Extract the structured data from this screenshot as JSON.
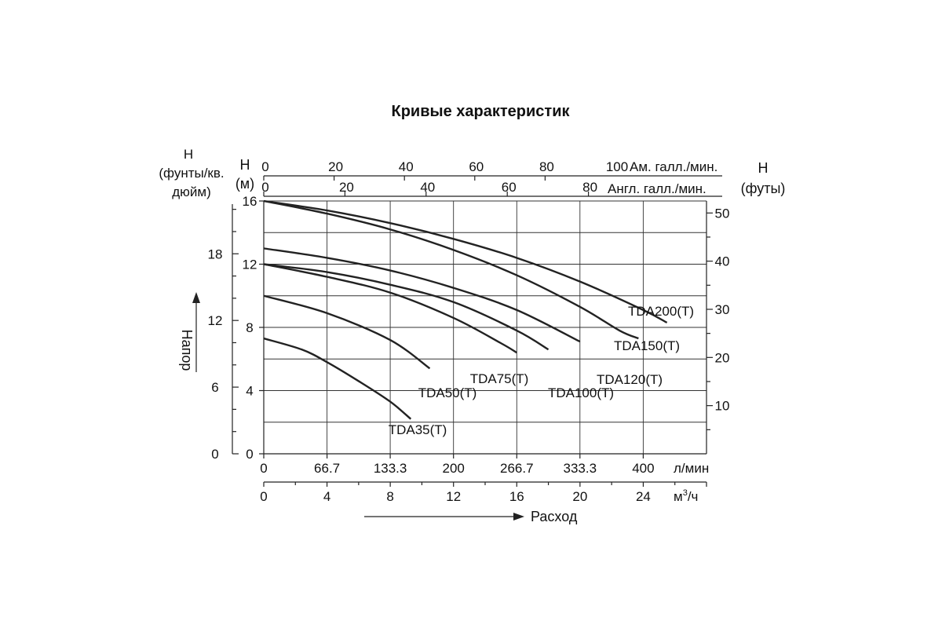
{
  "chart_data": {
    "type": "line",
    "title": "Кривые характеристик",
    "left_outer_axis": {
      "label_lines": [
        "Н",
        "(фунты/кв.",
        "дюйм)"
      ],
      "ticks": [
        0,
        6,
        12,
        18
      ]
    },
    "left_axis": {
      "label_lines": [
        "Н",
        "(м)"
      ],
      "ticks": [
        0,
        4,
        8,
        12,
        16
      ],
      "range": [
        0,
        16
      ],
      "side_label": "Напор"
    },
    "right_axis": {
      "label_lines": [
        "Н",
        "(футы)"
      ],
      "ticks": [
        10,
        20,
        30,
        40,
        50
      ]
    },
    "top_axis_1": {
      "ticks": [
        "0",
        "20",
        "40",
        "60",
        "80",
        "100"
      ],
      "label": "Ам. галл./мин."
    },
    "top_axis_2": {
      "ticks": [
        "0",
        "20",
        "40",
        "60",
        "80"
      ],
      "label": "Англ. галл./мин."
    },
    "bottom_axis_1": {
      "ticks": [
        "0",
        "66.7",
        "133.3",
        "200",
        "266.7",
        "333.3",
        "400"
      ],
      "label": "л/мин",
      "range": [
        0,
        466.7
      ]
    },
    "bottom_axis_2": {
      "ticks": [
        "0",
        "4",
        "8",
        "12",
        "16",
        "20",
        "24"
      ],
      "label_base": "м",
      "label_sup": "3",
      "label_tail": "/ч"
    },
    "flow_label": "Расход",
    "series": [
      {
        "name": "TDA200(T)",
        "x": [
          0,
          66.7,
          133.3,
          200,
          266.7,
          333.3,
          400,
          425
        ],
        "y": [
          16,
          15.4,
          14.6,
          13.6,
          12.4,
          10.9,
          9.1,
          8.3
        ]
      },
      {
        "name": "TDA150(T)",
        "x": [
          0,
          66.7,
          133.3,
          200,
          266.7,
          333.3,
          375,
          395
        ],
        "y": [
          16,
          15.2,
          14.2,
          12.9,
          11.3,
          9.3,
          7.8,
          7.3
        ]
      },
      {
        "name": "TDA120(T)",
        "x": [
          0,
          66.7,
          133.3,
          200,
          266.7,
          333.3
        ],
        "y": [
          13,
          12.4,
          11.6,
          10.5,
          9.1,
          7.1
        ]
      },
      {
        "name": "TDA100(T)",
        "x": [
          0,
          66.7,
          133.3,
          200,
          266.7,
          300
        ],
        "y": [
          12,
          11.5,
          10.7,
          9.6,
          7.8,
          6.6
        ]
      },
      {
        "name": "TDA75(T)",
        "x": [
          0,
          66.7,
          133.3,
          200,
          250,
          266.7
        ],
        "y": [
          12,
          11.2,
          10.2,
          8.6,
          7.0,
          6.4
        ]
      },
      {
        "name": "TDA50(T)",
        "x": [
          0,
          66.7,
          133.3,
          175
        ],
        "y": [
          10,
          8.9,
          7.2,
          5.4
        ]
      },
      {
        "name": "TDA35(T)",
        "x": [
          0,
          40,
          66.7,
          100,
          133.3,
          155
        ],
        "y": [
          7.3,
          6.6,
          5.8,
          4.6,
          3.3,
          2.2
        ]
      }
    ]
  }
}
